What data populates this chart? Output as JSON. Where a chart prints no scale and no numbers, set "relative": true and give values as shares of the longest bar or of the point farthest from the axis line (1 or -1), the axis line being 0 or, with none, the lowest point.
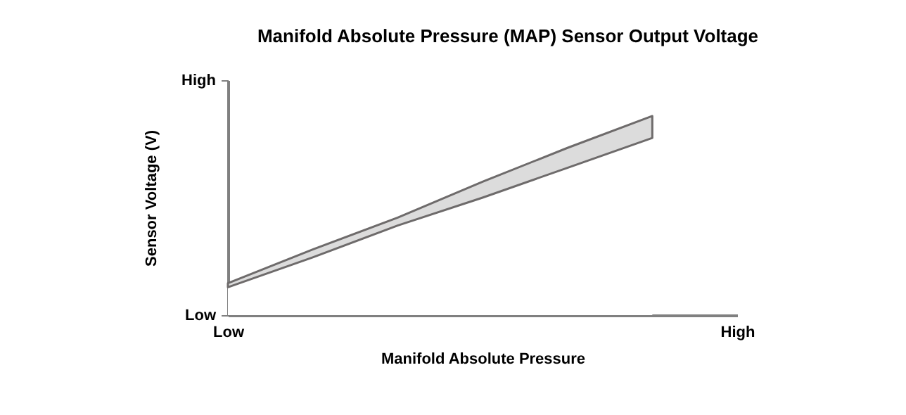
{
  "chart_data": {
    "type": "area",
    "title": "Manifold Absolute Pressure (MAP) Sensor Output Voltage",
    "xlabel": "Manifold Absolute Pressure",
    "ylabel": "Sensor Voltage (V)",
    "relative": true,
    "stacked": true,
    "categories": [
      "Low",
      null,
      null,
      null,
      null,
      null,
      "High"
    ],
    "annotations": [
      "Low",
      "High"
    ],
    "series": [
      {
        "color": "#ffffff",
        "values": [
          0.14,
          0.29,
          0.45,
          0.59,
          0.74,
          0.89,
          null
        ]
      },
      {
        "color": "#dcdcdc",
        "values": [
          0.02,
          0.04,
          0.04,
          0.08,
          0.1,
          0.11,
          null
        ]
      }
    ],
    "grid": false
  }
}
